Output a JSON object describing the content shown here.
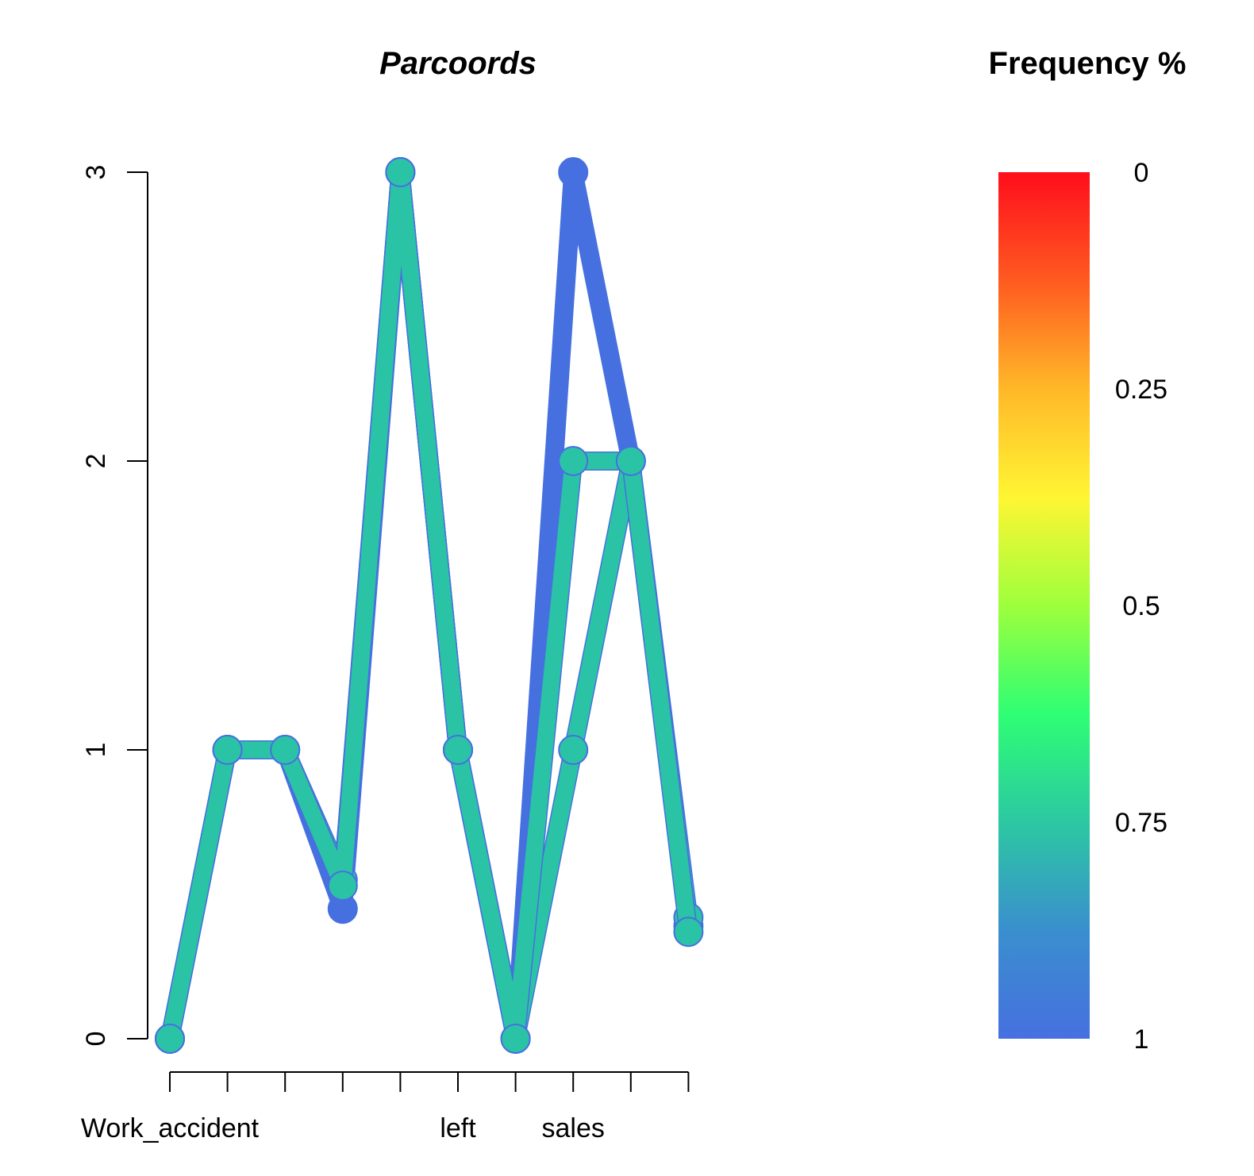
{
  "chart_data": {
    "type": "line",
    "title": "Parcoords",
    "x_labels": [
      "Work_accident",
      "",
      "",
      "",
      "",
      "left",
      "",
      "sales",
      "",
      ""
    ],
    "ylim": [
      0,
      3
    ],
    "y_ticks": [
      "0",
      "1",
      "2",
      "3"
    ],
    "series": [
      {
        "color": "#4670DF",
        "values": [
          0,
          1,
          1,
          0.45,
          3,
          1,
          0,
          3,
          2,
          0.39
        ]
      },
      {
        "color": "#2BC3A6",
        "values": [
          0,
          1,
          1,
          0.55,
          3,
          1,
          0,
          1,
          2,
          0.42
        ]
      },
      {
        "color": "#2BC3A6",
        "values": [
          0,
          1,
          1,
          0.53,
          3,
          1,
          0,
          2,
          2,
          0.37
        ]
      }
    ],
    "legend": {
      "title": "Frequency %",
      "tick_labels": [
        "0",
        "0.25",
        "0.5",
        "0.75",
        "1"
      ],
      "colors": [
        "#FF0D1C",
        "#FF5A20",
        "#FFB828",
        "#FFF533",
        "#9EFF3C",
        "#2EFE74",
        "#2CC8A2",
        "#3A8FCE",
        "#4670DF"
      ]
    }
  }
}
